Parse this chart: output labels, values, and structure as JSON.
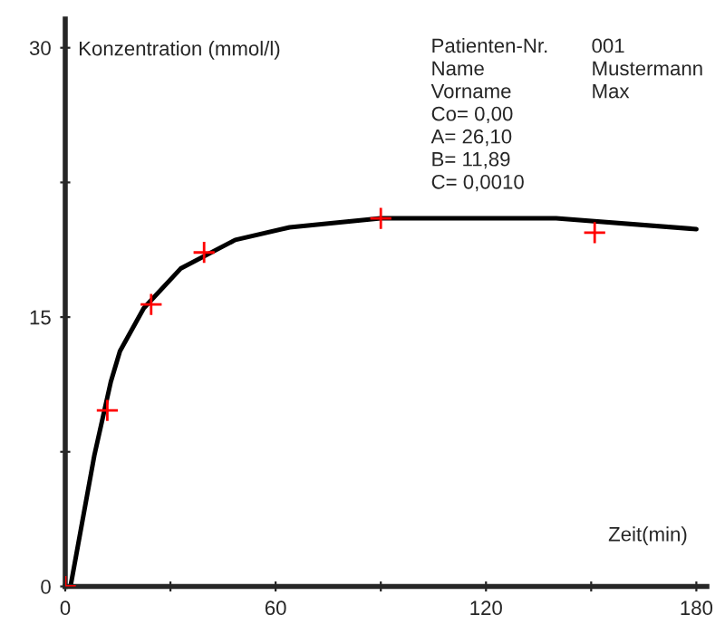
{
  "chart_data": {
    "type": "scatter",
    "xlabel": "Zeit(min)",
    "ylabel": "Konzentration (mmol/l)",
    "xlim": [
      0,
      183
    ],
    "ylim": [
      0,
      31.6
    ],
    "xticks": [
      0,
      {
        "value": 30,
        "label": null
      },
      60,
      {
        "value": 90,
        "label": null
      },
      120,
      {
        "value": 150,
        "label": null
      },
      180
    ],
    "yticks": [
      0,
      {
        "value": 7.5,
        "label": null
      },
      15,
      {
        "value": 22.5,
        "label": null
      },
      30
    ],
    "grid": false,
    "series": [
      {
        "color": "#ff0000",
        "marker": "cross",
        "x": [
          0,
          12,
          24.5,
          39.6,
          90,
          151
        ],
        "values": [
          0,
          9.8,
          15.7,
          18.6,
          20.5,
          19.7
        ]
      },
      {
        "type": "line",
        "color": "#000000",
        "marker": "none",
        "line_style": "solid",
        "x": [
          1.5,
          8.3,
          13,
          15.6,
          22.4,
          32.9,
          48.5,
          64,
          90,
          140,
          180
        ],
        "values": [
          0,
          7.3,
          11.4,
          13.1,
          15.5,
          17.7,
          19.3,
          20.0,
          20.5,
          20.5,
          19.9
        ]
      }
    ],
    "annotations": [
      "Patienten-Nr.",
      "001",
      "Name",
      "Mustermann",
      "Vorname",
      "Max",
      "Co= 0,00",
      "A= 26,10",
      "B= 11,89",
      "C= 0,0010"
    ]
  }
}
